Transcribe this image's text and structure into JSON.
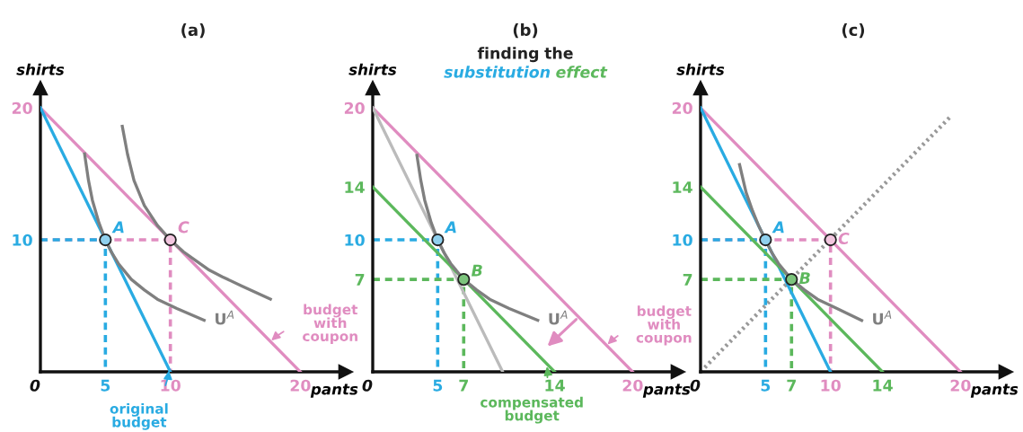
{
  "chart_data": [
    {
      "type": "line",
      "title": "(a)",
      "xlabel": "pants",
      "ylabel": "shirts",
      "xlim": [
        0,
        23.5
      ],
      "ylim": [
        0,
        21.5
      ],
      "xticks": [
        {
          "value": 0,
          "label": "0"
        },
        {
          "value": 5,
          "label": "5"
        },
        {
          "value": 10,
          "label": "10"
        },
        {
          "value": 20,
          "label": "20"
        }
      ],
      "yticks": [
        {
          "value": 10,
          "label": "10"
        },
        {
          "value": 20,
          "label": "20"
        }
      ],
      "series": [
        {
          "x": [
            0,
            10,
            10
          ],
          "values": [
            10,
            10,
            0
          ],
          "color": "#e08cc0",
          "line_style": "dashed"
        },
        {
          "x": [
            0,
            5,
            5
          ],
          "values": [
            10,
            10,
            0
          ],
          "color": "#29abe2",
          "line_style": "dashed"
        },
        {
          "x": [
            0,
            20
          ],
          "values": [
            20,
            0
          ],
          "color": "#e08cc0",
          "line_style": "solid"
        },
        {
          "x": [
            0,
            10
          ],
          "values": [
            20,
            0
          ],
          "color": "#29abe2",
          "line_style": "solid"
        },
        {
          "x": [
            3.4,
            3.7,
            4,
            4.5,
            5,
            5.5,
            6,
            7,
            8,
            9,
            10.5,
            12.6
          ],
          "values": [
            16.5,
            14.5,
            13.0,
            11.3,
            10,
            9.0,
            8.2,
            7.0,
            6.2,
            5.5,
            4.8,
            3.9
          ],
          "color": "#7f7f7f",
          "line_style": "solid"
        },
        {
          "x": [
            6.3,
            6.7,
            7.2,
            8,
            9,
            10,
            11,
            12,
            13,
            14,
            15.5,
            17.7
          ],
          "values": [
            18.6,
            16.5,
            14.5,
            12.6,
            11.1,
            10,
            9.1,
            8.4,
            7.7,
            7.2,
            6.5,
            5.5
          ],
          "color": "#7f7f7f",
          "line_style": "solid"
        },
        {
          "type": "scatter",
          "x": [
            5
          ],
          "values": [
            10
          ],
          "color": "#8fd0ee",
          "marker": "circle"
        },
        {
          "type": "scatter",
          "x": [
            10
          ],
          "values": [
            10
          ],
          "color": "#f2c6df",
          "marker": "circle"
        }
      ],
      "annotations": [
        {
          "text": "A",
          "x": 5,
          "y": 10
        },
        {
          "text": "C",
          "x": 10,
          "y": 10
        },
        {
          "text": "U$^{A}$",
          "x": 12.6,
          "y": 3.9
        },
        {
          "text": "budget\nwith\ncoupon",
          "x": 17.7,
          "y": 2.3
        },
        {
          "text": "original\nbudget",
          "x": 9.9,
          "y": 0.2
        }
      ]
    },
    {
      "type": "line",
      "title": "(b)",
      "subtitle": "finding the\nsubstitution effect",
      "xlabel": "pants",
      "ylabel": "shirts",
      "xlim": [
        0,
        23.5
      ],
      "ylim": [
        0,
        21.5
      ],
      "xticks": [
        {
          "value": 0,
          "label": "0"
        },
        {
          "value": 5,
          "label": "5"
        },
        {
          "value": 7,
          "label": "7"
        },
        {
          "value": 14,
          "label": "14"
        },
        {
          "value": 20,
          "label": "20"
        }
      ],
      "yticks": [
        {
          "value": 7,
          "label": "7"
        },
        {
          "value": 10,
          "label": "10"
        },
        {
          "value": 14,
          "label": "14"
        },
        {
          "value": 20,
          "label": "20"
        }
      ],
      "series": [
        {
          "x": [
            0,
            5,
            5
          ],
          "values": [
            10,
            10,
            0
          ],
          "color": "#29abe2",
          "line_style": "dashed"
        },
        {
          "x": [
            0,
            7,
            7
          ],
          "values": [
            7,
            7,
            0
          ],
          "color": "#5cb85c",
          "line_style": "dashed"
        },
        {
          "x": [
            0,
            20
          ],
          "values": [
            20,
            0
          ],
          "color": "#e08cc0",
          "line_style": "solid"
        },
        {
          "x": [
            0,
            10
          ],
          "values": [
            20,
            0
          ],
          "color": "#bbbbbb",
          "line_style": "solid"
        },
        {
          "x": [
            0,
            14
          ],
          "values": [
            14,
            0
          ],
          "color": "#5cb85c",
          "line_style": "solid"
        },
        {
          "x": [
            3.4,
            3.7,
            4,
            4.5,
            5,
            5.5,
            6,
            7,
            8,
            9,
            10.5,
            12.7
          ],
          "values": [
            16.4,
            14.5,
            13.0,
            11.3,
            10,
            9.0,
            8.2,
            7.0,
            6.2,
            5.5,
            4.8,
            3.9
          ],
          "color": "#7f7f7f",
          "line_style": "solid"
        },
        {
          "type": "scatter",
          "x": [
            5
          ],
          "values": [
            10
          ],
          "color": "#8fd0ee",
          "marker": "circle"
        },
        {
          "type": "scatter",
          "x": [
            7
          ],
          "values": [
            7
          ],
          "color": "#7cc47c",
          "marker": "circle"
        }
      ],
      "annotations": [
        {
          "text": "A",
          "x": 5,
          "y": 10
        },
        {
          "text": "B",
          "x": 7,
          "y": 7
        },
        {
          "text": "U$^{A}$",
          "x": 12.7,
          "y": 3.9
        },
        {
          "text": "budget\nwith\ncoupon",
          "x": 18.0,
          "y": 2.0
        },
        {
          "text": "compensated\nbudget",
          "x": 13.4,
          "y": 0.5
        }
      ]
    },
    {
      "type": "line",
      "title": "(c)",
      "xlabel": "pants",
      "ylabel": "shirts",
      "xlim": [
        0,
        23.5
      ],
      "ylim": [
        0,
        21.5
      ],
      "xticks": [
        {
          "value": 0,
          "label": "0"
        },
        {
          "value": 5,
          "label": "5"
        },
        {
          "value": 7,
          "label": "7"
        },
        {
          "value": 10,
          "label": "10"
        },
        {
          "value": 14,
          "label": "14"
        },
        {
          "value": 20,
          "label": "20"
        }
      ],
      "yticks": [
        {
          "value": 7,
          "label": "7"
        },
        {
          "value": 10,
          "label": "10"
        },
        {
          "value": 14,
          "label": "14"
        },
        {
          "value": 20,
          "label": "20"
        }
      ],
      "series": [
        {
          "x": [
            0,
            19.2
          ],
          "values": [
            0,
            19.3
          ],
          "color": "#999999",
          "line_style": "dotted"
        },
        {
          "x": [
            0,
            10,
            10
          ],
          "values": [
            10,
            10,
            0
          ],
          "color": "#e08cc0",
          "line_style": "dashed"
        },
        {
          "x": [
            0,
            5,
            5
          ],
          "values": [
            10,
            10,
            0
          ],
          "color": "#29abe2",
          "line_style": "dashed"
        },
        {
          "x": [
            0,
            7,
            7
          ],
          "values": [
            7,
            7,
            0
          ],
          "color": "#5cb85c",
          "line_style": "dashed"
        },
        {
          "x": [
            0,
            20
          ],
          "values": [
            20,
            0
          ],
          "color": "#e08cc0",
          "line_style": "solid"
        },
        {
          "x": [
            0,
            10
          ],
          "values": [
            20,
            0
          ],
          "color": "#29abe2",
          "line_style": "solid"
        },
        {
          "x": [
            0,
            14
          ],
          "values": [
            14,
            0
          ],
          "color": "#5cb85c",
          "line_style": "solid"
        },
        {
          "x": [
            3.0,
            3.5,
            4,
            4.5,
            5,
            5.5,
            6,
            7,
            8,
            9,
            10.5,
            12.4
          ],
          "values": [
            15.7,
            13.6,
            12.2,
            11.0,
            10,
            9.0,
            8.2,
            7.0,
            6.2,
            5.5,
            4.8,
            3.9
          ],
          "color": "#7f7f7f",
          "line_style": "solid"
        },
        {
          "type": "scatter",
          "x": [
            5
          ],
          "values": [
            10
          ],
          "color": "#8fd0ee",
          "marker": "circle"
        },
        {
          "type": "scatter",
          "x": [
            7
          ],
          "values": [
            7
          ],
          "color": "#7cc47c",
          "marker": "circle"
        },
        {
          "type": "scatter",
          "x": [
            10
          ],
          "values": [
            10
          ],
          "color": "#f2c6df",
          "marker": "circle"
        }
      ],
      "annotations": [
        {
          "text": "A",
          "x": 5,
          "y": 10
        },
        {
          "text": "B",
          "x": 7,
          "y": 7
        },
        {
          "text": "C",
          "x": 10,
          "y": 10
        },
        {
          "text": "U$^{A}$",
          "x": 12.4,
          "y": 3.9
        }
      ]
    }
  ]
}
